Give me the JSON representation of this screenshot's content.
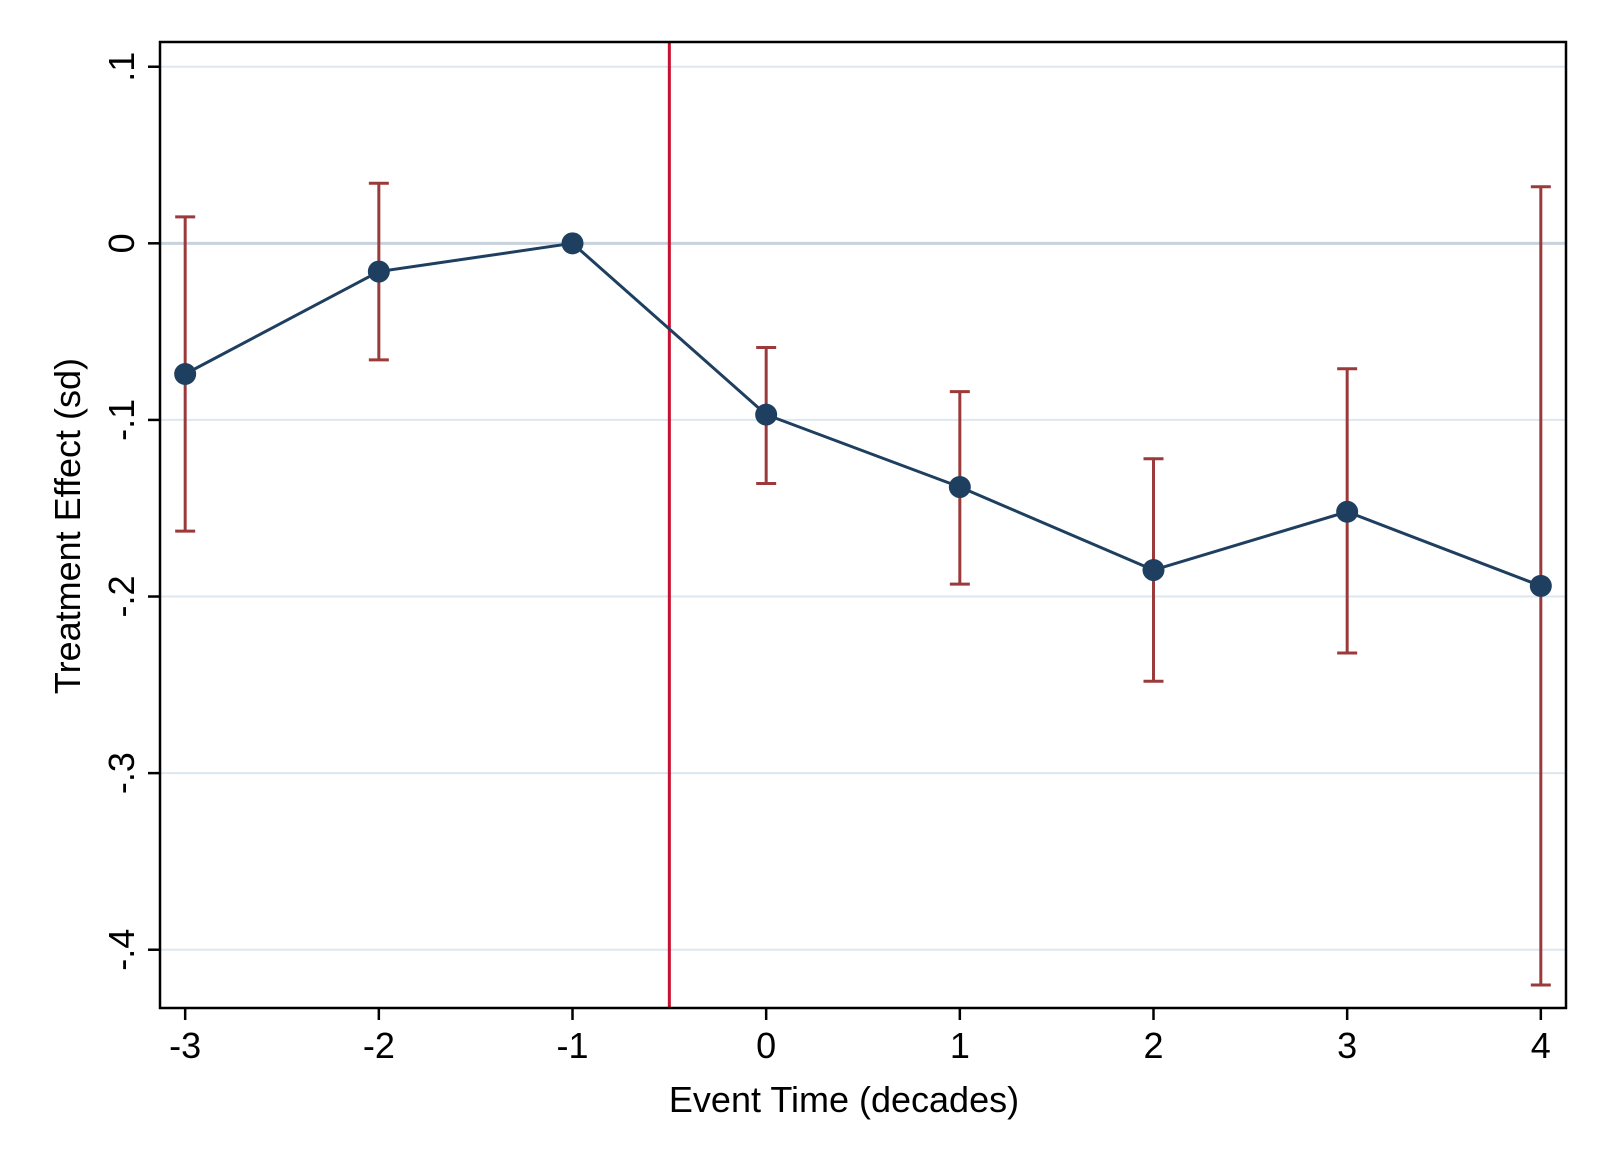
{
  "chart_data": {
    "type": "scatter",
    "xlabel": "Event Time (decades)",
    "ylabel": "Treatment Effect (sd)",
    "xlim": [
      -3.13,
      4.13
    ],
    "ylim": [
      -0.433,
      0.114
    ],
    "x_ticks": [
      -3,
      -2,
      -1,
      0,
      1,
      2,
      3,
      4
    ],
    "x_tick_labels": [
      "-3",
      "-2",
      "-1",
      "0",
      "1",
      "2",
      "3",
      "4"
    ],
    "y_ticks": [
      0.1,
      0,
      -0.1,
      -0.2,
      -0.3,
      -0.4
    ],
    "y_tick_labels": [
      ".1",
      "0",
      "-.1",
      "-.2",
      "-.3",
      "-.4"
    ],
    "grid": "horizontal",
    "reference_line_x": -0.5,
    "series": [
      {
        "type": "line-with-markers",
        "x": [
          -3,
          -2,
          -1,
          0,
          1,
          2,
          3,
          4
        ],
        "y": [
          -0.074,
          -0.016,
          0.0,
          -0.097,
          -0.138,
          -0.185,
          -0.152,
          -0.194
        ]
      },
      {
        "type": "error-bars",
        "x": [
          -3,
          -2,
          0,
          1,
          2,
          3,
          4
        ],
        "lower": [
          -0.163,
          -0.066,
          -0.136,
          -0.193,
          -0.248,
          -0.232,
          -0.42
        ],
        "upper": [
          0.015,
          0.034,
          -0.059,
          -0.084,
          -0.122,
          -0.071,
          0.032
        ]
      }
    ],
    "colors": {
      "line": "#1f3f60",
      "marker": "#1f3f60",
      "error_bar": "#9b3a3a",
      "reference_line": "#c8102e",
      "grid": "#dde7ef",
      "zero_line": "#c8d2dc",
      "frame": "#000000"
    }
  }
}
